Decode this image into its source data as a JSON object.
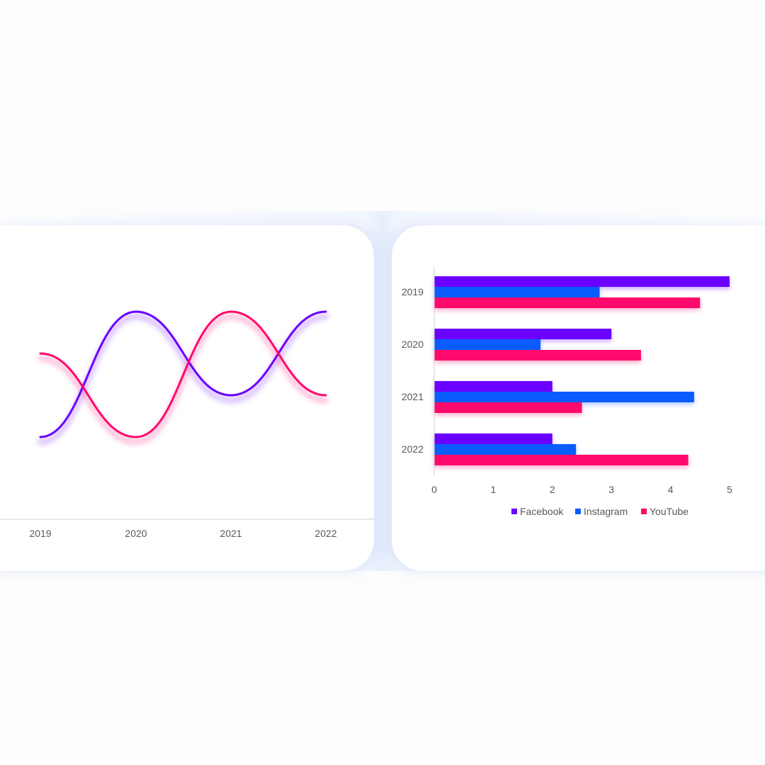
{
  "chart_data": [
    {
      "type": "line",
      "smooth": true,
      "categories": [
        "2019",
        "2020",
        "2021",
        "2022"
      ],
      "series": [
        {
          "color": "#6a00ff",
          "values": [
            1.0,
            4.0,
            2.0,
            4.0
          ]
        },
        {
          "color": "#ff0a6c",
          "values": [
            3.0,
            1.0,
            4.0,
            2.0
          ]
        }
      ],
      "ylim": [
        0,
        5
      ],
      "y_axis_shown": false,
      "grid": false,
      "line_glow": true
    },
    {
      "type": "bar",
      "orientation": "horizontal",
      "categories": [
        "2019",
        "2020",
        "2021",
        "2022"
      ],
      "series": [
        {
          "name": "Facebook",
          "color": "#6a00ff",
          "values": [
            5.0,
            3.0,
            2.0,
            2.0
          ]
        },
        {
          "name": "Instagram",
          "color": "#0a5cff",
          "values": [
            2.8,
            1.8,
            4.4,
            2.4
          ]
        },
        {
          "name": "YouTube",
          "color": "#ff0a6c",
          "values": [
            4.5,
            3.5,
            2.5,
            4.3
          ]
        }
      ],
      "xlim": [
        0,
        5
      ],
      "x_ticks": [
        "0",
        "1",
        "2",
        "3",
        "4",
        "5"
      ],
      "grid": false,
      "legend_position": "bottom"
    }
  ]
}
